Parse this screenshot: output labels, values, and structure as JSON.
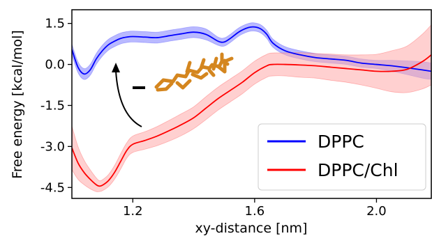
{
  "chart_data": {
    "type": "line",
    "xlabel": "xy-distance [nm]",
    "ylabel": "Free energy [kcal/mol]",
    "xlim": [
      1.0,
      2.18
    ],
    "ylim": [
      -4.9,
      2.0
    ],
    "xticks": [
      1.2,
      1.6,
      2.0
    ],
    "xtick_labels": [
      "1.2",
      "1.6",
      "2.0"
    ],
    "yticks": [
      1.5,
      0.0,
      -1.5,
      -3.0,
      -4.5
    ],
    "ytick_labels": [
      "1.5",
      "0.0",
      "-1.5",
      "-3.0",
      "-4.5"
    ],
    "grid": false,
    "legend_position": "bottom-right",
    "series": [
      {
        "name": "DPPC",
        "color": "#0000ff",
        "band_color": "#7f7fff",
        "x": [
          1.0,
          1.02,
          1.04,
          1.06,
          1.08,
          1.1,
          1.12,
          1.14,
          1.16,
          1.18,
          1.2,
          1.24,
          1.28,
          1.32,
          1.36,
          1.4,
          1.44,
          1.48,
          1.5,
          1.52,
          1.55,
          1.58,
          1.6,
          1.62,
          1.64,
          1.66,
          1.7,
          1.75,
          1.8,
          1.85,
          1.9,
          1.95,
          2.0,
          2.05,
          2.1,
          2.15,
          2.18
        ],
        "y": [
          0.55,
          -0.1,
          -0.35,
          -0.2,
          0.2,
          0.5,
          0.72,
          0.85,
          0.95,
          1.0,
          1.02,
          1.0,
          0.98,
          1.05,
          1.12,
          1.18,
          1.1,
          0.85,
          0.82,
          0.95,
          1.2,
          1.35,
          1.37,
          1.3,
          1.1,
          0.78,
          0.5,
          0.35,
          0.25,
          0.2,
          0.15,
          0.05,
          0.0,
          -0.05,
          -0.12,
          -0.2,
          -0.25
        ],
        "err": [
          0.2,
          0.2,
          0.2,
          0.2,
          0.2,
          0.2,
          0.2,
          0.2,
          0.2,
          0.2,
          0.2,
          0.2,
          0.2,
          0.2,
          0.2,
          0.2,
          0.2,
          0.15,
          0.15,
          0.15,
          0.15,
          0.15,
          0.15,
          0.15,
          0.15,
          0.15,
          0.15,
          0.15,
          0.15,
          0.15,
          0.15,
          0.15,
          0.15,
          0.2,
          0.25,
          0.3,
          0.3
        ]
      },
      {
        "name": "DPPC/Chl",
        "color": "#ff0000",
        "band_color": "#ffaaaa",
        "x": [
          1.0,
          1.02,
          1.04,
          1.06,
          1.08,
          1.09,
          1.1,
          1.12,
          1.14,
          1.16,
          1.18,
          1.2,
          1.24,
          1.28,
          1.32,
          1.36,
          1.4,
          1.44,
          1.48,
          1.52,
          1.56,
          1.6,
          1.64,
          1.66,
          1.7,
          1.75,
          1.8,
          1.85,
          1.9,
          1.95,
          2.0,
          2.05,
          2.1,
          2.15,
          2.18
        ],
        "y": [
          -3.05,
          -3.6,
          -3.95,
          -4.2,
          -4.4,
          -4.45,
          -4.42,
          -4.25,
          -3.95,
          -3.55,
          -3.15,
          -2.92,
          -2.78,
          -2.62,
          -2.42,
          -2.2,
          -1.95,
          -1.6,
          -1.25,
          -0.95,
          -0.65,
          -0.3,
          -0.05,
          0.0,
          0.0,
          -0.02,
          -0.05,
          -0.1,
          -0.15,
          -0.2,
          -0.25,
          -0.25,
          -0.18,
          0.1,
          0.35
        ],
        "err": [
          0.8,
          0.6,
          0.45,
          0.35,
          0.25,
          0.2,
          0.2,
          0.22,
          0.25,
          0.28,
          0.28,
          0.3,
          0.32,
          0.35,
          0.38,
          0.4,
          0.4,
          0.42,
          0.42,
          0.42,
          0.42,
          0.42,
          0.42,
          0.42,
          0.42,
          0.45,
          0.45,
          0.48,
          0.5,
          0.55,
          0.62,
          0.75,
          0.85,
          1.0,
          1.1
        ]
      }
    ]
  }
}
